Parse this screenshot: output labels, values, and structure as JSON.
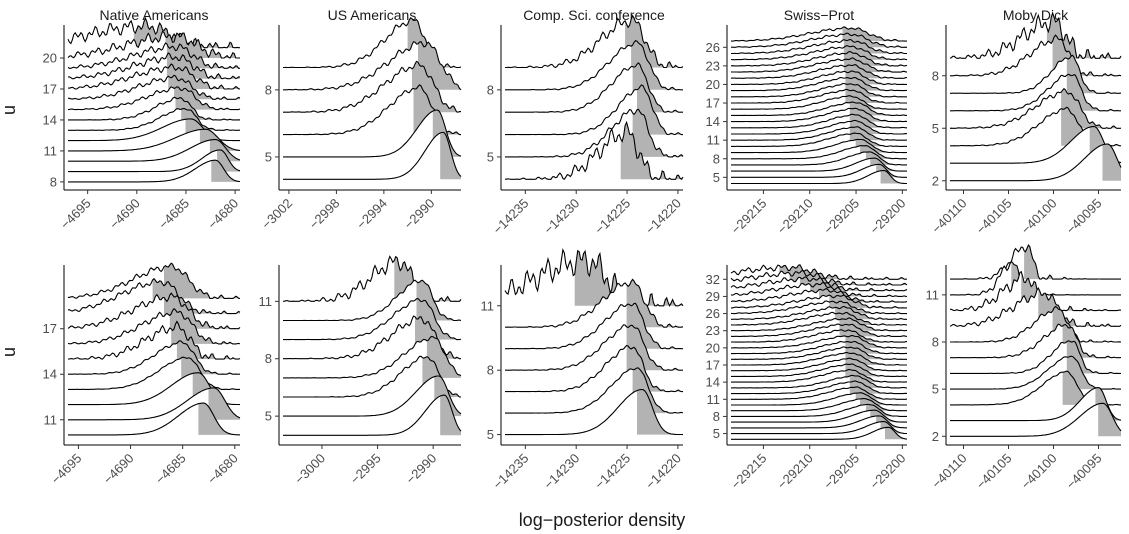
{
  "figure": {
    "xlabel": "log−posterior density",
    "ylabel": "u"
  },
  "colors": {
    "ridge_fill": "#b3b3b3",
    "line": "#000000",
    "tick_text": "#4d4d4d"
  },
  "chart_data": [
    {
      "type": "area",
      "title": "Native Americans",
      "row": 0,
      "col": 0,
      "xlim": [
        -4697,
        -4679.5
      ],
      "x_ticks": [
        -4695,
        -4690,
        -4685,
        -4680
      ],
      "x_tick_labels": [
        "−4695",
        "−4690",
        "−4685",
        "−4680"
      ],
      "ylim": [
        7.6,
        23.2
      ],
      "y_ticks": [
        8,
        11,
        14,
        17,
        20
      ],
      "y_tick_labels": [
        "8",
        "11",
        "14",
        "17",
        "20"
      ],
      "u_values": [
        8,
        9,
        10,
        11,
        12,
        13,
        14,
        15,
        16,
        17,
        18,
        19,
        20,
        21
      ],
      "modes": [
        -4682,
        -4681.5,
        -4682,
        -4683,
        -4684.5,
        -4685,
        -4685.5,
        -4685.5,
        -4686,
        -4686,
        -4686,
        -4686,
        -4686,
        -4689
      ],
      "spreads": [
        1.2,
        1.1,
        1.5,
        1.8,
        1.7,
        1.5,
        1.5,
        2,
        2.2,
        2.5,
        2.5,
        2.5,
        3,
        3.5
      ],
      "rough": [
        0,
        0,
        0,
        0,
        0,
        0.1,
        0.15,
        0.2,
        0.25,
        0.3,
        0.35,
        0.35,
        0.5,
        0.6
      ]
    },
    {
      "type": "area",
      "title": "US Americans",
      "row": 0,
      "col": 1,
      "xlim": [
        -3002.5,
        -2987.5
      ],
      "x_ticks": [
        -3002,
        -2998,
        -2994,
        -2990
      ],
      "x_tick_labels": [
        "−3002",
        "−2998",
        "−2994",
        "−2990"
      ],
      "ylim": [
        3.7,
        10.9
      ],
      "y_ticks": [
        5,
        8
      ],
      "y_tick_labels": [
        "5",
        "8"
      ],
      "u_values": [
        4,
        5,
        6,
        7,
        8,
        9
      ],
      "modes": [
        -2989,
        -2989.5,
        -2991,
        -2991,
        -2990.5,
        -2991.5
      ],
      "spreads": [
        0.9,
        1,
        1.5,
        1.7,
        1.8,
        1.4
      ],
      "rough": [
        0,
        0,
        0.1,
        0.15,
        0.15,
        0.15
      ]
    },
    {
      "type": "area",
      "title": "Comp. Sci. conference",
      "row": 0,
      "col": 2,
      "xlim": [
        -14237,
        -14219.5
      ],
      "x_ticks": [
        -14235,
        -14230,
        -14225,
        -14220
      ],
      "x_tick_labels": [
        "−14235",
        "−14230",
        "−14225",
        "−14220"
      ],
      "ylim": [
        3.7,
        10.9
      ],
      "y_ticks": [
        5,
        8
      ],
      "y_tick_labels": [
        "5",
        "8"
      ],
      "u_values": [
        4,
        5,
        6,
        7,
        8,
        9
      ],
      "modes": [
        -14225,
        -14224,
        -14223.5,
        -14224,
        -14224,
        -14224.5
      ],
      "spreads": [
        1.6,
        1.5,
        1.4,
        1.5,
        1.6,
        1.8
      ],
      "rough": [
        0.4,
        0.15,
        0.1,
        0.1,
        0.1,
        0.25
      ]
    },
    {
      "type": "area",
      "title": "Swiss−Prot",
      "row": 0,
      "col": 3,
      "xlim": [
        -29218.5,
        -29199.5
      ],
      "x_ticks": [
        -29215,
        -29210,
        -29205,
        -29200
      ],
      "x_tick_labels": [
        "−29215",
        "−29210",
        "−29205",
        "−29200"
      ],
      "ylim": [
        3.6,
        29.6
      ],
      "y_ticks": [
        5,
        8,
        11,
        14,
        17,
        20,
        23,
        26
      ],
      "y_tick_labels": [
        "5",
        "8",
        "11",
        "14",
        "17",
        "20",
        "23",
        "26"
      ],
      "u_values": [
        4,
        5,
        6,
        7,
        8,
        9,
        10,
        11,
        12,
        13,
        14,
        15,
        16,
        17,
        18,
        19,
        20,
        21,
        22,
        23,
        24,
        25,
        26,
        27
      ],
      "modes": [
        -29202,
        -29202.5,
        -29203,
        -29203.5,
        -29204,
        -29204.5,
        -29205,
        -29205,
        -29205,
        -29205,
        -29205,
        -29205,
        -29205.5,
        -29205.5,
        -29205.5,
        -29205.5,
        -29205.5,
        -29205.5,
        -29205.5,
        -29205.5,
        -29205.5,
        -29205.5,
        -29205.5,
        -29205.5
      ],
      "spreads": [
        1,
        1.1,
        1.2,
        1.4,
        1.5,
        1.6,
        1.7,
        1.7,
        1.7,
        1.7,
        1.8,
        1.8,
        1.8,
        1.9,
        1.9,
        2,
        2,
        2.1,
        2.2,
        2.2,
        2.3,
        2.4,
        2.5,
        2.6
      ],
      "rough": [
        0,
        0,
        0,
        0.05,
        0.05,
        0.05,
        0.08,
        0.08,
        0.08,
        0.1,
        0.1,
        0.1,
        0.1,
        0.12,
        0.12,
        0.12,
        0.15,
        0.15,
        0.15,
        0.18,
        0.18,
        0.2,
        0.2,
        0.2
      ]
    },
    {
      "type": "area",
      "title": "Moby Dick",
      "row": 0,
      "col": 4,
      "xlim": [
        -40111.5,
        -40092.5
      ],
      "x_ticks": [
        -40110,
        -40105,
        -40100,
        -40095
      ],
      "x_tick_labels": [
        "−40110",
        "−40105",
        "−40100",
        "−40095"
      ],
      "ylim": [
        1.7,
        10.9
      ],
      "y_ticks": [
        2,
        5,
        8
      ],
      "y_tick_labels": [
        "2",
        "5",
        "8"
      ],
      "u_values": [
        2,
        3,
        4,
        5,
        6,
        7,
        8,
        9
      ],
      "modes": [
        -40094,
        -40095.5,
        -40098.5,
        -40098.5,
        -40098,
        -40098,
        -40099.5,
        -40100
      ],
      "spreads": [
        1.5,
        1.5,
        1.8,
        2,
        1.5,
        1.3,
        1.8,
        2
      ],
      "rough": [
        0,
        0,
        0.1,
        0.15,
        0.1,
        0.1,
        0.2,
        0.5
      ]
    },
    {
      "type": "area",
      "title": "",
      "row": 1,
      "col": 0,
      "xlim": [
        -4696,
        -4679.5
      ],
      "x_ticks": [
        -4695,
        -4690,
        -4685,
        -4680
      ],
      "x_tick_labels": [
        "−4695",
        "−4690",
        "−4685",
        "−4680"
      ],
      "ylim": [
        9.6,
        21.2
      ],
      "y_ticks": [
        11,
        14,
        17
      ],
      "y_tick_labels": [
        "11",
        "14",
        "17"
      ],
      "u_values": [
        10,
        11,
        12,
        13,
        14,
        15,
        16,
        17,
        18,
        19
      ],
      "modes": [
        -4683,
        -4682,
        -4683.5,
        -4684.5,
        -4685,
        -4685.5,
        -4685.5,
        -4686,
        -4687,
        -4686
      ],
      "spreads": [
        1.4,
        1.5,
        1.5,
        1.6,
        1.6,
        1.8,
        2,
        2.2,
        2.3,
        2.2
      ],
      "rough": [
        0,
        0,
        0,
        0.05,
        0.1,
        0.3,
        0.2,
        0.25,
        0.2,
        0.2
      ]
    },
    {
      "type": "area",
      "title": "",
      "row": 1,
      "col": 1,
      "xlim": [
        -3003.5,
        -2987.5
      ],
      "x_ticks": [
        -3000,
        -2995,
        -2990
      ],
      "x_tick_labels": [
        "−3000",
        "−2995",
        "−2990"
      ],
      "ylim": [
        3.7,
        12.9
      ],
      "y_ticks": [
        5,
        8,
        11
      ],
      "y_tick_labels": [
        "5",
        "8",
        "11"
      ],
      "u_values": [
        4,
        5,
        6,
        7,
        8,
        9,
        10,
        11
      ],
      "modes": [
        -2989,
        -2989.5,
        -2990.5,
        -2990,
        -2991,
        -2991,
        -2991,
        -2993
      ],
      "spreads": [
        1,
        1.2,
        1.4,
        1.5,
        1.6,
        1.5,
        1.3,
        1.5
      ],
      "rough": [
        0,
        0,
        0.1,
        0.1,
        0.2,
        0.1,
        0.1,
        0.4
      ]
    },
    {
      "type": "area",
      "title": "",
      "row": 1,
      "col": 2,
      "xlim": [
        -14237,
        -14219.5
      ],
      "x_ticks": [
        -14235,
        -14230,
        -14225,
        -14220
      ],
      "x_tick_labels": [
        "−14235",
        "−14230",
        "−14225",
        "−14220"
      ],
      "ylim": [
        4.7,
        12.9
      ],
      "y_ticks": [
        5,
        8,
        11
      ],
      "y_tick_labels": [
        "5",
        "8",
        "11"
      ],
      "u_values": [
        5,
        6,
        7,
        8,
        9,
        10,
        11
      ],
      "modes": [
        -14223.5,
        -14224,
        -14224.5,
        -14224.5,
        -14224.5,
        -14224.5,
        -14229
      ],
      "spreads": [
        1.4,
        1.5,
        1.5,
        1.6,
        1.6,
        1.7,
        3
      ],
      "rough": [
        0,
        0.05,
        0.1,
        0.1,
        0.1,
        0.15,
        0.6
      ]
    },
    {
      "type": "area",
      "title": "",
      "row": 1,
      "col": 3,
      "xlim": [
        -29218.5,
        -29199.5
      ],
      "x_ticks": [
        -29215,
        -29210,
        -29205,
        -29200
      ],
      "x_tick_labels": [
        "−29215",
        "−29210",
        "−29205",
        "−29200"
      ],
      "ylim": [
        3.7,
        34.5
      ],
      "y_ticks": [
        5,
        8,
        11,
        14,
        17,
        20,
        23,
        26,
        29,
        32
      ],
      "y_tick_labels": [
        "5",
        "8",
        "11",
        "14",
        "17",
        "20",
        "23",
        "26",
        "29",
        "32"
      ],
      "u_values": [
        4,
        5,
        6,
        7,
        8,
        9,
        10,
        11,
        12,
        13,
        14,
        15,
        16,
        17,
        18,
        19,
        20,
        21,
        22,
        23,
        24,
        25,
        26,
        27,
        28,
        29,
        30,
        31,
        32
      ],
      "modes": [
        -29201.5,
        -29202,
        -29202.5,
        -29203,
        -29203.5,
        -29204,
        -29204.5,
        -29205,
        -29205,
        -29205,
        -29205.5,
        -29205.5,
        -29205.5,
        -29205.5,
        -29205.5,
        -29205.5,
        -29205.5,
        -29206,
        -29206,
        -29206,
        -29206.5,
        -29206.5,
        -29207,
        -29207,
        -29208,
        -29209,
        -29210,
        -29211,
        -29212
      ],
      "spreads": [
        1,
        1.1,
        1.2,
        1.3,
        1.4,
        1.5,
        1.6,
        1.7,
        1.7,
        1.7,
        1.8,
        1.8,
        1.8,
        1.9,
        1.9,
        1.9,
        2,
        2,
        2.1,
        2.1,
        2.2,
        2.2,
        2.3,
        2.4,
        2.5,
        2.7,
        3,
        3.2,
        3.5
      ],
      "rough": [
        0,
        0,
        0,
        0,
        0.05,
        0.05,
        0.05,
        0.08,
        0.08,
        0.1,
        0.1,
        0.1,
        0.1,
        0.1,
        0.12,
        0.12,
        0.12,
        0.15,
        0.15,
        0.15,
        0.18,
        0.2,
        0.2,
        0.25,
        0.3,
        0.35,
        0.4,
        0.45,
        0.5
      ]
    },
    {
      "type": "area",
      "title": "",
      "row": 1,
      "col": 4,
      "xlim": [
        -40111.5,
        -40092.5
      ],
      "x_ticks": [
        -40110,
        -40105,
        -40100,
        -40095
      ],
      "x_tick_labels": [
        "−40110",
        "−40105",
        "−40100",
        "−40095"
      ],
      "ylim": [
        1.7,
        12.9
      ],
      "y_ticks": [
        2,
        5,
        8,
        11
      ],
      "y_tick_labels": [
        "2",
        "5",
        "8",
        "11"
      ],
      "u_values": [
        2,
        3,
        4,
        5,
        6,
        7,
        8,
        9,
        10,
        11,
        12
      ],
      "modes": [
        -40094.5,
        -40095,
        -40098.5,
        -40098,
        -40098,
        -40098.5,
        -40099.5,
        -40101,
        -40103,
        -40104.5,
        -40103
      ],
      "spreads": [
        1.5,
        1.2,
        1.6,
        1.5,
        1.3,
        1.5,
        1.5,
        2,
        1.5,
        0.8,
        1
      ],
      "rough": [
        0,
        0,
        0.05,
        0.05,
        0.1,
        0.15,
        0.15,
        0.3,
        0.4,
        0.3,
        0.3
      ]
    }
  ]
}
